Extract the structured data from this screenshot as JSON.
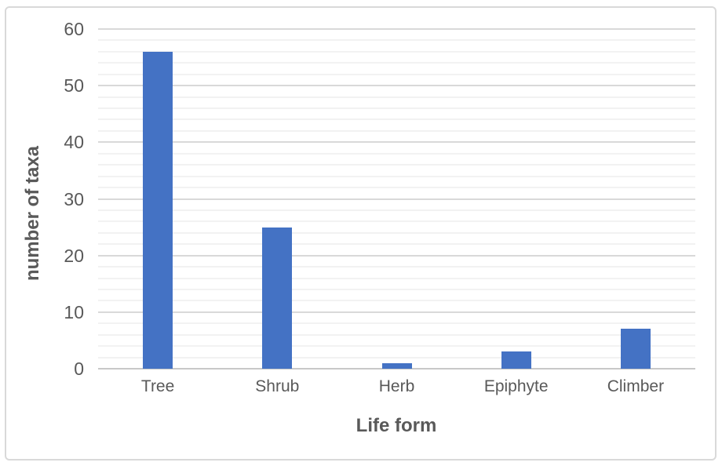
{
  "chart_data": {
    "type": "bar",
    "title": "",
    "categories": [
      "Tree",
      "Shrub",
      "Herb",
      "Epiphyte",
      "Climber"
    ],
    "values": [
      56,
      25,
      1,
      3,
      7
    ],
    "xlabel": "Life form",
    "ylabel": "number of taxa",
    "ylim": [
      0,
      60
    ],
    "y_ticks": [
      0,
      10,
      20,
      30,
      40,
      50,
      60
    ],
    "y_major_step": 10,
    "y_minor_step": 2,
    "grid": "horizontal, major and minor, minor lighter",
    "legend": "none",
    "bar_color": "#4472C4"
  },
  "colors": {
    "bar": "#4472C4",
    "major_gridline": "#D9D9D9",
    "minor_gridline": "#F2F2F2",
    "axis_line": "#C8C8C8",
    "text": "#595959",
    "frame_border": "#D9D9D9",
    "background": "#FFFFFF"
  }
}
